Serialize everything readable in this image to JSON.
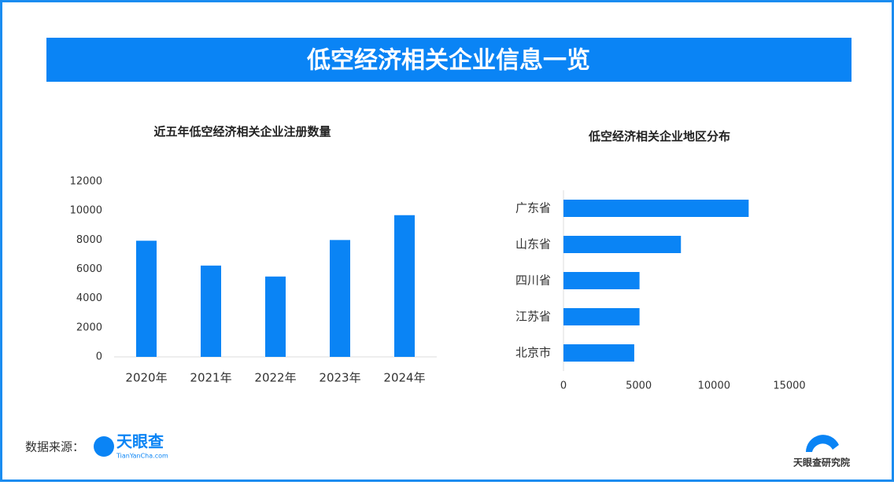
{
  "header": {
    "title": "低空经济相关企业信息一览"
  },
  "footer": {
    "source_label": "数据来源：",
    "logo": "天眼查",
    "logo_sub": "TianYanCha.com",
    "institute": "天眼查研究院"
  },
  "chart_data": [
    {
      "type": "bar",
      "title": "近五年低空经济相关企业注册数量",
      "categories": [
        "2020年",
        "2021年",
        "2022年",
        "2023年",
        "2024年"
      ],
      "values": [
        7950,
        6250,
        5500,
        8000,
        9700
      ],
      "color": "#0a84f5",
      "ylim": [
        0,
        12000
      ],
      "yticks": [
        0,
        2000,
        4000,
        6000,
        8000,
        10000,
        12000
      ]
    },
    {
      "type": "barh",
      "title": "低空经济相关企业地区分布",
      "categories": [
        "广东省",
        "山东省",
        "四川省",
        "江苏省",
        "北京市"
      ],
      "values": [
        12300,
        7800,
        5050,
        5050,
        4700
      ],
      "color": "#0a84f5",
      "xlim": [
        0,
        15000
      ],
      "xticks": [
        0,
        5000,
        10000,
        15000
      ]
    }
  ]
}
